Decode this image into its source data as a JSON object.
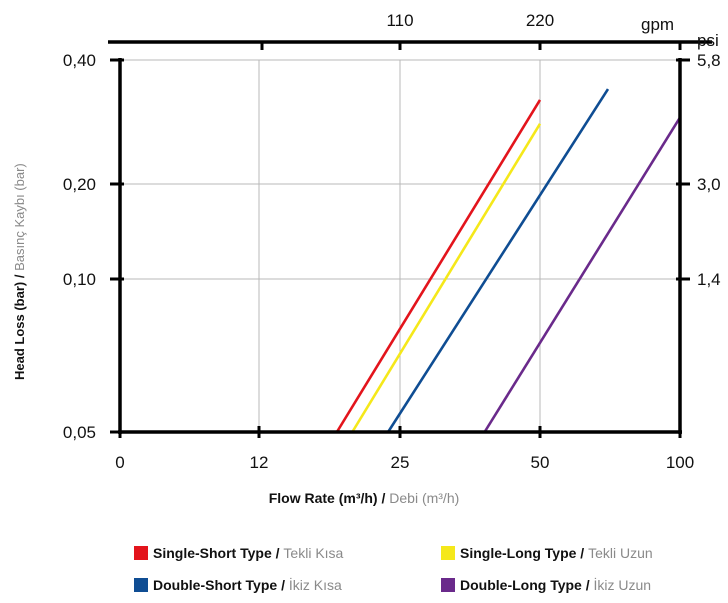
{
  "chart_data": {
    "type": "line",
    "xscale": "log",
    "yscale": "log",
    "x_ticks": [
      "0",
      "12",
      "25",
      "50",
      "100"
    ],
    "y_ticks": [
      "0,05",
      "0,10",
      "0,20",
      "0,40"
    ],
    "top_ticks": [
      "110",
      "220"
    ],
    "top_unit": "gpm",
    "right_ticks": [
      "1,4",
      "3,0",
      "5,8"
    ],
    "right_unit": "psi",
    "xlabel_bold": "Flow Rate (m³/h) /",
    "xlabel_light": "Debi (m³/h)",
    "ylabel_bold": "Head Loss (bar) /",
    "ylabel_light": "Basınç Kaybı (bar)",
    "series": [
      {
        "name_bold": "Single-Short Type /",
        "name_light": "Tekli Kısa",
        "color": "#e3141c",
        "x": [
          18,
          50
        ],
        "y": [
          0.05,
          0.32
        ]
      },
      {
        "name_bold": "Single-Long Type /",
        "name_light": "Tekli Uzun",
        "color": "#f5e81a",
        "x": [
          19.5,
          50
        ],
        "y": [
          0.05,
          0.28
        ]
      },
      {
        "name_bold": "Double-Short Type /",
        "name_light": "İkiz Kısa",
        "color": "#0f4d93",
        "x": [
          23.5,
          70
        ],
        "y": [
          0.05,
          0.34
        ]
      },
      {
        "name_bold": "Double-Long Type /",
        "name_light": "İkiz Uzun",
        "color": "#6a2a8b",
        "x": [
          38,
          100
        ],
        "y": [
          0.05,
          0.29
        ]
      }
    ],
    "grid": true
  }
}
